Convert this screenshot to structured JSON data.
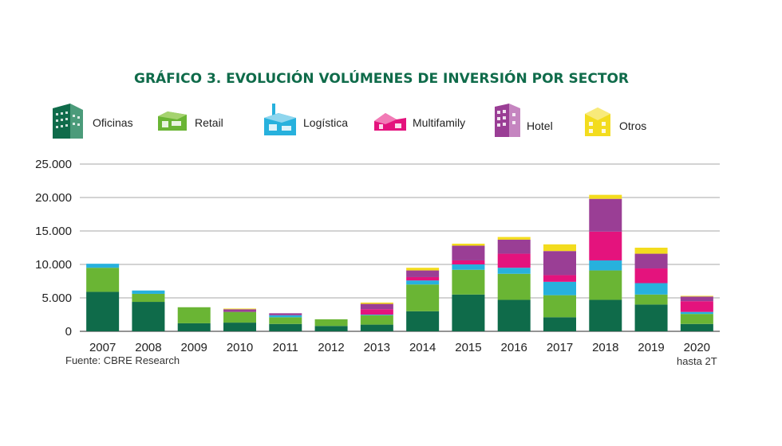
{
  "chart_data": {
    "type": "bar",
    "stacked": true,
    "title": "GRÁFICO 3. EVOLUCIÓN VOLÚMENES DE INVERSIÓN POR SECTOR",
    "source": "Fuente: CBRE Research",
    "categories": [
      "2007",
      "2008",
      "2009",
      "2010",
      "2011",
      "2012",
      "2013",
      "2014",
      "2015",
      "2016",
      "2017",
      "2018",
      "2019",
      "2020"
    ],
    "category_sublabels": {
      "2020": "hasta 2T"
    },
    "ylim": [
      0,
      25000
    ],
    "yticks": [
      0,
      5000,
      10000,
      15000,
      20000,
      25000
    ],
    "ytick_labels": [
      "0",
      "5.000",
      "10.000",
      "15.000",
      "20.000",
      "25.000"
    ],
    "grid": true,
    "legend_position": "top",
    "series": [
      {
        "name": "Oficinas",
        "color": "#0f6b4a",
        "icon": "office-building-icon",
        "values": [
          5900,
          4400,
          1200,
          1300,
          1100,
          800,
          1000,
          3000,
          5500,
          4700,
          2100,
          4700,
          4000,
          1100
        ]
      },
      {
        "name": "Retail",
        "color": "#6ab534",
        "icon": "retail-store-icon",
        "values": [
          3600,
          1200,
          2400,
          1600,
          1000,
          1000,
          1400,
          4000,
          3700,
          3900,
          3300,
          4400,
          1500,
          1500
        ]
      },
      {
        "name": "Logística",
        "color": "#27b1dd",
        "icon": "warehouse-icon",
        "values": [
          600,
          500,
          0,
          0,
          300,
          0,
          100,
          600,
          800,
          900,
          2000,
          1500,
          1700,
          300
        ]
      },
      {
        "name": "Multifamily",
        "color": "#e4137d",
        "icon": "house-icon",
        "values": [
          0,
          0,
          0,
          0,
          0,
          0,
          800,
          500,
          600,
          2100,
          1000,
          4300,
          2200,
          1600
        ]
      },
      {
        "name": "Hotel",
        "color": "#9a3e95",
        "icon": "hotel-icon",
        "values": [
          0,
          0,
          0,
          400,
          300,
          0,
          800,
          1000,
          2200,
          2100,
          3600,
          4900,
          2200,
          700
        ]
      },
      {
        "name": "Otros",
        "color": "#f3dc1e",
        "icon": "other-building-icon",
        "values": [
          0,
          0,
          0,
          100,
          0,
          0,
          200,
          400,
          300,
          400,
          1000,
          600,
          900,
          100
        ]
      }
    ]
  }
}
